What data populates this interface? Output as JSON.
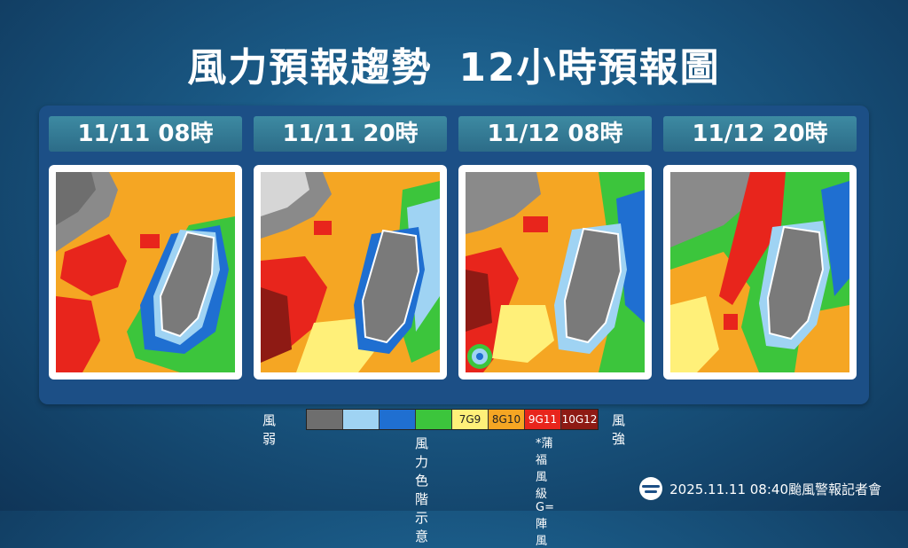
{
  "title": {
    "main": "風力預報趨勢",
    "sub": "12小時預報圖"
  },
  "panels": [
    {
      "label": "11/11 08時"
    },
    {
      "label": "11/11 20時"
    },
    {
      "label": "11/12 08時"
    },
    {
      "label": "11/12 20時"
    }
  ],
  "legend": {
    "weak_label": "風弱",
    "strong_label": "風強",
    "caption": "風力色階示意",
    "note": "*蒲福風級 G=陣風",
    "swatches": [
      {
        "label": "",
        "color": "#6e6e6e"
      },
      {
        "label": "",
        "color": "#9fd3f3"
      },
      {
        "label": "",
        "color": "#1f6fd1"
      },
      {
        "label": "",
        "color": "#3cc53c"
      },
      {
        "label": "7G9",
        "color": "#fff079"
      },
      {
        "label": "8G10",
        "color": "#f5a623"
      },
      {
        "label": "9G11",
        "color": "#e8251c"
      },
      {
        "label": "10G12",
        "color": "#8e1a14"
      }
    ]
  },
  "footer": {
    "text": "2025.11.11  08:40颱風警報記者會"
  }
}
